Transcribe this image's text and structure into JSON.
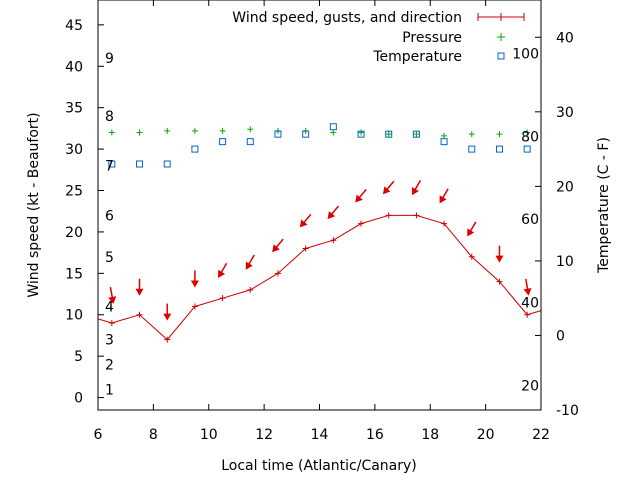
{
  "chart_data": {
    "type": "line",
    "xlabel": "Local time (Atlantic/Canary)",
    "ylabel_left": "Wind speed (kt - Beaufort)",
    "ylabel_right": "Temperature (C - F)",
    "xlim": [
      6,
      22
    ],
    "ylim_left": [
      -1.5,
      48
    ],
    "ylim_right": [
      -10,
      45
    ],
    "x_ticks": [
      "6",
      "8",
      "10",
      "12",
      "14",
      "16",
      "18",
      "20",
      "22"
    ],
    "y_left_ticks": [
      "0",
      "5",
      "10",
      "15",
      "20",
      "25",
      "30",
      "35",
      "40",
      "45"
    ],
    "y_right_ticks": [
      "-10",
      "0",
      "10",
      "20",
      "30",
      "40"
    ],
    "beaufort_labels": [
      {
        "label": "1",
        "value": 1
      },
      {
        "label": "2",
        "value": 4
      },
      {
        "label": "3",
        "value": 7
      },
      {
        "label": "4",
        "value": 11
      },
      {
        "label": "5",
        "value": 17
      },
      {
        "label": "6",
        "value": 22
      },
      {
        "label": "7",
        "value": 28
      },
      {
        "label": "8",
        "value": 34
      },
      {
        "label": "9",
        "value": 41
      }
    ],
    "fahrenheit_labels": [
      {
        "label": "20",
        "value": -6.7
      },
      {
        "label": "40",
        "value": 4.4
      },
      {
        "label": "60",
        "value": 15.6
      },
      {
        "label": "80",
        "value": 26.7
      },
      {
        "label": "100",
        "value": 37.8
      }
    ],
    "legend_position": "top-right",
    "series": [
      {
        "name": "Wind speed, gusts, and direction",
        "color": "#cc0000",
        "x": [
          6,
          6.5,
          7.5,
          8.5,
          9.5,
          10.5,
          11.5,
          12.5,
          13.5,
          14.5,
          15.5,
          16.5,
          17.5,
          18.5,
          19.5,
          20.5,
          21.5,
          22
        ],
        "y": [
          9.5,
          9,
          10,
          7,
          11,
          12,
          13,
          15,
          18,
          19,
          21,
          22,
          22,
          21,
          17,
          14,
          10,
          10.5
        ]
      },
      {
        "name": "Pressure",
        "color": "#00aa00",
        "x": [
          6.5,
          7.5,
          8.5,
          9.5,
          10.5,
          11.5,
          12.5,
          13.5,
          14.5,
          15.5,
          16.5,
          17.5,
          18.5,
          19.5,
          20.5,
          21.5
        ],
        "y": [
          32,
          32,
          32.2,
          32.2,
          32.2,
          32.4,
          32.2,
          32.2,
          32,
          32,
          31.8,
          31.8,
          31.6,
          31.8,
          31.8,
          32
        ]
      },
      {
        "name": "Temperature",
        "color": "#0066cc",
        "axis": "right",
        "x": [
          6.5,
          7.5,
          8.5,
          9.5,
          10.5,
          11.5,
          12.5,
          13.5,
          14.5,
          15.5,
          16.5,
          17.5,
          18.5,
          19.5,
          20.5,
          21.5
        ],
        "y": [
          23,
          23,
          23,
          25,
          26,
          26,
          27,
          27,
          28,
          27,
          27,
          27,
          26,
          25,
          25,
          25
        ]
      }
    ],
    "wind_direction_arrows": [
      {
        "x": 6.5,
        "direction_deg": 350
      },
      {
        "x": 7.5,
        "direction_deg": 0
      },
      {
        "x": 8.5,
        "direction_deg": 0
      },
      {
        "x": 9.5,
        "direction_deg": 0
      },
      {
        "x": 10.5,
        "direction_deg": 30
      },
      {
        "x": 11.5,
        "direction_deg": 30
      },
      {
        "x": 12.5,
        "direction_deg": 40
      },
      {
        "x": 13.5,
        "direction_deg": 40
      },
      {
        "x": 14.5,
        "direction_deg": 40
      },
      {
        "x": 15.5,
        "direction_deg": 40
      },
      {
        "x": 16.5,
        "direction_deg": 40
      },
      {
        "x": 17.5,
        "direction_deg": 30
      },
      {
        "x": 18.5,
        "direction_deg": 30
      },
      {
        "x": 19.5,
        "direction_deg": 30
      },
      {
        "x": 20.5,
        "direction_deg": 0
      },
      {
        "x": 21.5,
        "direction_deg": 350
      }
    ],
    "arrow_color": "#dd0000"
  }
}
